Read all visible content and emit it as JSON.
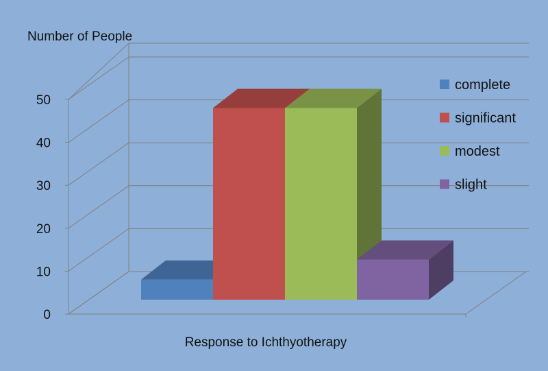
{
  "chart_data": {
    "type": "bar",
    "ylabel": "Number of People",
    "xlabel": "Response to Ichthyotherapy",
    "ylim": [
      0,
      50
    ],
    "yticks": [
      0,
      10,
      20,
      30,
      40,
      50
    ],
    "grid": true,
    "legend_position": "top-right",
    "three_d": true,
    "series": [
      {
        "name": "complete",
        "value": 4.5,
        "color": "#4f81bd"
      },
      {
        "name": "significant",
        "value": 43,
        "color": "#c0504d"
      },
      {
        "name": "modest",
        "value": 43,
        "color": "#9bbb59"
      },
      {
        "name": "slight",
        "value": 9,
        "color": "#8064a2"
      }
    ]
  }
}
